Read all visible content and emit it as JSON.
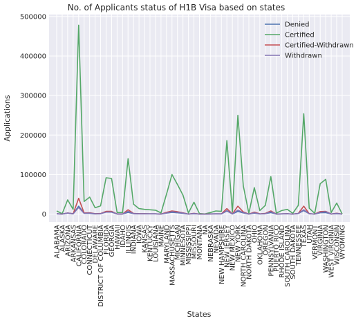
{
  "chart_data": {
    "type": "line",
    "title": "No. of Applicants status of H1B Visa based on states",
    "xlabel": "States",
    "ylabel": "Applications",
    "ylim": [
      -20000,
      505000
    ],
    "yticks": [
      0,
      100000,
      200000,
      300000,
      400000,
      500000
    ],
    "grid": true,
    "legend_position": "top-right",
    "categories": [
      "ALABAMA",
      "ALASKA",
      "ARIZONA",
      "ARKANSAS",
      "CALIFORNIA",
      "COLORADO",
      "CONNECTICUT",
      "DELAWARE",
      "DISTRICT OF COLUMBIA",
      "FLORIDA",
      "GEORGIA",
      "HAWAII",
      "IDAHO",
      "ILLINOIS",
      "INDIANA",
      "IOWA",
      "KANSAS",
      "KENTUCKY",
      "LOUISIANA",
      "MAINE",
      "MARYLAND",
      "MASSACHUSETTS",
      "MICHIGAN",
      "MINNESOTA",
      "MISSISSIPPI",
      "MISSOURI",
      "MONTANA",
      "NA",
      "NEBRASKA",
      "NEVADA",
      "NEW HAMPSHIRE",
      "NEW JERSEY",
      "NEW MEXICO",
      "NEW YORK",
      "NORTH CAROLINA",
      "NORTH DAKOTA",
      "OHIO",
      "OKLAHOMA",
      "OREGON",
      "PENNSYLVANIA",
      "PUERTO RICO",
      "RHODE ISLAND",
      "SOUTH CAROLINA",
      "SOUTH DAKOTA",
      "TENNESSEE",
      "TEXAS",
      "UTAH",
      "VERMONT",
      "VIRGINIA",
      "WASHINGTON",
      "WEST VIRGINIA",
      "WISCONSIN",
      "WYOMING"
    ],
    "series": [
      {
        "name": "Denied",
        "color": "#4c72b0",
        "values": [
          1200,
          300,
          2500,
          800,
          20000,
          2200,
          1800,
          500,
          1000,
          5500,
          5000,
          500,
          300,
          4500,
          1200,
          900,
          800,
          600,
          700,
          200,
          2500,
          4500,
          3500,
          2000,
          300,
          1200,
          200,
          100,
          600,
          700,
          600,
          8000,
          500,
          7000,
          3000,
          200,
          2500,
          500,
          1200,
          4000,
          300,
          500,
          1000,
          200,
          1500,
          9000,
          1200,
          200,
          3500,
          4000,
          400,
          1200,
          100
        ]
      },
      {
        "name": "Certified",
        "color": "#55a868",
        "values": [
          8000,
          1000,
          36000,
          12000,
          478000,
          32000,
          43000,
          16000,
          21000,
          92000,
          90000,
          4000,
          4000,
          140000,
          25000,
          14000,
          12000,
          11000,
          10000,
          3000,
          50000,
          100000,
          75000,
          48000,
          3000,
          30000,
          1500,
          500,
          4000,
          8000,
          7000,
          186000,
          5000,
          250000,
          71000,
          2000,
          67000,
          9000,
          22000,
          95000,
          2500,
          9000,
          12000,
          2000,
          22000,
          254000,
          15000,
          2000,
          77000,
          88000,
          4000,
          28000,
          500
        ]
      },
      {
        "name": "Certified-Withdrawn",
        "color": "#c44e52",
        "values": [
          800,
          100,
          3000,
          800,
          40000,
          3000,
          3500,
          1200,
          1500,
          7000,
          7000,
          300,
          300,
          11000,
          1800,
          1000,
          800,
          700,
          700,
          200,
          4500,
          8000,
          6000,
          3500,
          200,
          2000,
          100,
          50,
          400,
          700,
          600,
          14000,
          400,
          20000,
          5500,
          150,
          5000,
          600,
          1800,
          8000,
          200,
          700,
          900,
          150,
          1800,
          20000,
          1200,
          150,
          6500,
          7000,
          300,
          2200,
          50
        ]
      },
      {
        "name": "Withdrawn",
        "color": "#8172b2",
        "values": [
          700,
          100,
          2500,
          700,
          17000,
          2000,
          2500,
          900,
          1200,
          5000,
          5500,
          300,
          300,
          7000,
          1300,
          800,
          700,
          600,
          600,
          200,
          3000,
          6000,
          4500,
          2500,
          200,
          1500,
          100,
          50,
          300,
          600,
          500,
          9000,
          400,
          10000,
          4000,
          100,
          3500,
          500,
          1200,
          6000,
          200,
          600,
          800,
          100,
          1500,
          11000,
          1000,
          100,
          4500,
          6000,
          300,
          1800,
          50
        ]
      }
    ]
  }
}
